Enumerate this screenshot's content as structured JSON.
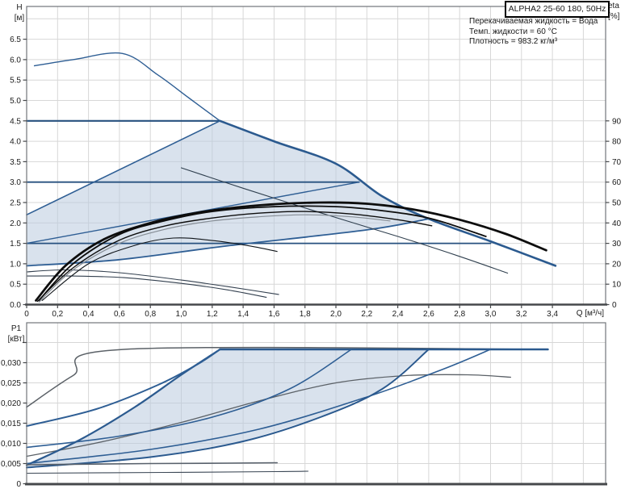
{
  "title_box": {
    "model": "ALPHA2 25-60 180, 50Hz"
  },
  "info_lines": [
    "Перекачиваемая жидкость = Вода",
    "Темп. жидкости = 60 °C",
    "Плотность = 983.2 кг/м³"
  ],
  "axes": {
    "h_label": "H",
    "h_unit": "[м]",
    "eta_label": "eta",
    "eta_unit": "[%]",
    "q_label": "Q [м³/ч]",
    "p1_label": "P1",
    "p1_unit": "[кВт]"
  },
  "colors": {
    "curve_blue": "#2e5e94",
    "curve_dark_blue": "#27517f",
    "curve_black": "#0d0d0d",
    "curve_grey": "#5b6167",
    "band_fill": "#b9cbdf",
    "grid": "#d7d7d7",
    "frame": "#71757a",
    "axis_heavy": "#46484b",
    "tick_text": "#1c1c1c"
  },
  "chart_data": [
    {
      "type": "line",
      "panel": "head-flow",
      "title": "ALPHA2 25-60 180, 50Hz",
      "xlabel": "Q [м³/ч]",
      "ylabel": "H [м]",
      "y2label": "eta [%]",
      "xlim": [
        0,
        3.74
      ],
      "ylim": [
        0,
        7.3
      ],
      "y2lim_labeled": [
        0,
        90
      ],
      "grid": true,
      "x_ticks": [
        [
          0,
          "0"
        ],
        [
          0.2,
          "0,2"
        ],
        [
          0.4,
          "0,4"
        ],
        [
          0.6,
          "0,6"
        ],
        [
          0.8,
          "0,8"
        ],
        [
          1,
          "1,0"
        ],
        [
          1.2,
          "1,2"
        ],
        [
          1.4,
          "1,4"
        ],
        [
          1.6,
          "1,6"
        ],
        [
          1.8,
          "1,8"
        ],
        [
          2,
          "2,0"
        ],
        [
          2.2,
          "2,2"
        ],
        [
          2.4,
          "2,4"
        ],
        [
          2.6,
          "2,6"
        ],
        [
          2.8,
          "2,8"
        ],
        [
          3,
          "3,0"
        ],
        [
          3.2,
          "3,2"
        ],
        [
          3.4,
          "3,4"
        ]
      ],
      "y_ticks": [
        [
          0,
          "0.0"
        ],
        [
          0.5,
          "0.5"
        ],
        [
          1,
          "1.0"
        ],
        [
          1.5,
          "1.5"
        ],
        [
          2,
          "2.0"
        ],
        [
          2.5,
          "2.5"
        ],
        [
          3,
          "3.0"
        ],
        [
          3.5,
          "3.5"
        ],
        [
          4,
          "4.0"
        ],
        [
          4.5,
          "4.5"
        ],
        [
          5,
          "5.0"
        ],
        [
          5.5,
          "5.5"
        ],
        [
          6,
          "6.0"
        ],
        [
          6.5,
          "6.5"
        ]
      ],
      "y2_ticks": [
        [
          0,
          "0"
        ],
        [
          10,
          "10"
        ],
        [
          20,
          "20"
        ],
        [
          30,
          "30"
        ],
        [
          40,
          "40"
        ],
        [
          50,
          "50"
        ],
        [
          60,
          "60"
        ],
        [
          70,
          "70"
        ],
        [
          80,
          "80"
        ],
        [
          90,
          "90"
        ]
      ],
      "band": {
        "name": "control-range",
        "upper": [
          [
            0,
            2.2
          ],
          [
            1.25,
            4.5
          ],
          [
            1.6,
            4.0
          ],
          [
            2.0,
            3.45
          ],
          [
            2.3,
            2.65
          ],
          [
            2.6,
            2.1
          ]
        ],
        "lower": [
          [
            0,
            0.95
          ],
          [
            0.6,
            1.1
          ],
          [
            1.3,
            1.44
          ],
          [
            2.2,
            1.83
          ],
          [
            2.6,
            2.1
          ]
        ]
      },
      "series": [
        {
          "name": "max-curve-upper",
          "unit": "H",
          "color": "#2e5e94",
          "width": 1.4,
          "pts": [
            [
              0.05,
              5.85
            ],
            [
              0.3,
              6.0
            ],
            [
              0.62,
              6.15
            ],
            [
              0.85,
              5.62
            ],
            [
              1.05,
              5.06
            ],
            [
              1.25,
              4.5
            ]
          ]
        },
        {
          "name": "max-curve-lower",
          "unit": "H",
          "color": "#2b5a8f",
          "width": 2.6,
          "pts": [
            [
              1.25,
              4.5
            ],
            [
              1.6,
              4.0
            ],
            [
              2.0,
              3.45
            ],
            [
              2.3,
              2.65
            ],
            [
              2.6,
              2.1
            ],
            [
              3.0,
              1.55
            ],
            [
              3.42,
              0.95
            ]
          ]
        },
        {
          "name": "const-pressure-4.5",
          "unit": "H",
          "color": "#27517f",
          "width": 2.2,
          "pts": [
            [
              0,
              4.5
            ],
            [
              1.25,
              4.5
            ]
          ]
        },
        {
          "name": "const-pressure-3.0",
          "unit": "H",
          "color": "#27517f",
          "width": 1.8,
          "pts": [
            [
              0,
              3.0
            ],
            [
              2.15,
              3.0
            ]
          ]
        },
        {
          "name": "const-pressure-1.5",
          "unit": "H",
          "color": "#27517f",
          "width": 1.8,
          "pts": [
            [
              0,
              1.5
            ],
            [
              3.0,
              1.5
            ]
          ]
        },
        {
          "name": "prop-pressure-4.5",
          "unit": "H",
          "color": "#2e5e94",
          "width": 1.6,
          "pts": [
            [
              0,
              2.2
            ],
            [
              1.25,
              4.5
            ]
          ]
        },
        {
          "name": "prop-pressure-3.0",
          "unit": "H",
          "color": "#2e5e94",
          "width": 1.4,
          "pts": [
            [
              0,
              1.5
            ],
            [
              2.15,
              3.0
            ]
          ]
        },
        {
          "name": "prop-pressure-1.5",
          "unit": "H",
          "color": "#2e5e94",
          "width": 1.8,
          "pts": [
            [
              0,
              0.95
            ],
            [
              0.6,
              1.1
            ],
            [
              1.3,
              1.44
            ],
            [
              2.2,
              1.83
            ],
            [
              2.6,
              2.1
            ]
          ]
        },
        {
          "name": "speed-curve-descending",
          "unit": "H",
          "color": "#30404f",
          "width": 1.1,
          "pts": [
            [
              1.0,
              3.35
            ],
            [
              1.4,
              2.85
            ],
            [
              1.9,
              2.25
            ],
            [
              2.4,
              1.67
            ],
            [
              2.8,
              1.18
            ],
            [
              3.11,
              0.77
            ]
          ]
        },
        {
          "name": "min-speed-curve-a",
          "unit": "H",
          "color": "#323f4e",
          "width": 1.1,
          "pts": [
            [
              0,
              0.8
            ],
            [
              0.25,
              0.85
            ],
            [
              0.6,
              0.78
            ],
            [
              1.0,
              0.6
            ],
            [
              1.3,
              0.44
            ],
            [
              1.63,
              0.25
            ]
          ]
        },
        {
          "name": "min-speed-curve-b",
          "unit": "H",
          "color": "#323f4e",
          "width": 1.1,
          "pts": [
            [
              0,
              0.7
            ],
            [
              0.3,
              0.7
            ],
            [
              0.63,
              0.66
            ],
            [
              1.0,
              0.52
            ],
            [
              1.3,
              0.36
            ],
            [
              1.55,
              0.18
            ]
          ]
        },
        {
          "name": "efficiency-main",
          "unit": "eta",
          "color": "#0d0d0d",
          "width": 2.8,
          "pts": [
            [
              0.06,
              2
            ],
            [
              0.25,
              19
            ],
            [
              0.5,
              32
            ],
            [
              0.8,
              40
            ],
            [
              1.1,
              45
            ],
            [
              1.5,
              48.6
            ],
            [
              1.9,
              50
            ],
            [
              2.2,
              49.4
            ],
            [
              2.5,
              46.6
            ],
            [
              2.8,
              41.6
            ],
            [
              3.1,
              34.6
            ],
            [
              3.36,
              26.6
            ]
          ]
        },
        {
          "name": "efficiency-2",
          "unit": "eta",
          "color": "#0d0d0d",
          "width": 1.8,
          "pts": [
            [
              0.08,
              2
            ],
            [
              0.3,
              20
            ],
            [
              0.6,
              34.4
            ],
            [
              0.9,
              41.2
            ],
            [
              1.2,
              45.6
            ],
            [
              1.6,
              48
            ],
            [
              2.0,
              48
            ],
            [
              2.3,
              46
            ],
            [
              2.62,
              42
            ],
            [
              2.97,
              33.4
            ]
          ]
        },
        {
          "name": "efficiency-3",
          "unit": "eta",
          "color": "#0d0d0d",
          "width": 1.4,
          "pts": [
            [
              0.07,
              1.6
            ],
            [
              0.3,
              18
            ],
            [
              0.6,
              31.6
            ],
            [
              0.9,
              38.6
            ],
            [
              1.2,
              42.4
            ],
            [
              1.5,
              44.8
            ],
            [
              1.8,
              45.6
            ],
            [
              2.1,
              44.4
            ],
            [
              2.4,
              41.6
            ],
            [
              2.62,
              38.6
            ]
          ]
        },
        {
          "name": "efficiency-grey",
          "unit": "eta",
          "color": "#868d95",
          "width": 1.2,
          "pts": [
            [
              0.08,
              1.2
            ],
            [
              0.3,
              17
            ],
            [
              0.6,
              30
            ],
            [
              0.9,
              37
            ],
            [
              1.2,
              41
            ],
            [
              1.5,
              43
            ],
            [
              1.8,
              44
            ],
            [
              2.1,
              43
            ],
            [
              2.35,
              41
            ]
          ]
        },
        {
          "name": "efficiency-min-speed",
          "unit": "eta",
          "color": "#10151a",
          "width": 1.1,
          "pts": [
            [
              0.1,
              2
            ],
            [
              0.4,
              20
            ],
            [
              0.7,
              29
            ],
            [
              0.95,
              32.6
            ],
            [
              1.2,
              31.4
            ],
            [
              1.45,
              28.6
            ],
            [
              1.62,
              26
            ]
          ]
        }
      ]
    },
    {
      "type": "line",
      "panel": "power-flow",
      "ylabel": "P1 [кВт]",
      "xlim": [
        0,
        3.74
      ],
      "ylim": [
        0,
        0.0395
      ],
      "grid": true,
      "y_ticks": [
        [
          0,
          "0"
        ],
        [
          0.005,
          "0,005"
        ],
        [
          0.01,
          "0,010"
        ],
        [
          0.015,
          "0,015"
        ],
        [
          0.02,
          "0,020"
        ],
        [
          0.025,
          "0,025"
        ],
        [
          0.03,
          "0,030"
        ],
        [
          0.035,
          ""
        ]
      ],
      "band": {
        "name": "power-control-range",
        "upper": [
          [
            0,
            0.0046
          ],
          [
            0.35,
            0.011
          ],
          [
            0.7,
            0.019
          ],
          [
            1.0,
            0.027
          ],
          [
            1.25,
            0.0333
          ],
          [
            2.6,
            0.0333
          ]
        ],
        "lower": [
          [
            0,
            0.004
          ],
          [
            0.8,
            0.0066
          ],
          [
            1.4,
            0.0105
          ],
          [
            1.9,
            0.0165
          ],
          [
            2.3,
            0.0235
          ],
          [
            2.6,
            0.0333
          ]
        ]
      },
      "series": [
        {
          "name": "p1-max-limit",
          "unit": "P1",
          "color": "#5b6167",
          "width": 1.5,
          "pts": [
            [
              0,
              0.019
            ],
            [
              0.3,
              0.0268
            ],
            [
              0.63,
              0.0333
            ],
            [
              3.37,
              0.0333
            ]
          ]
        },
        {
          "name": "p1-max-speed",
          "unit": "P1",
          "color": "#5b6167",
          "width": 1.3,
          "pts": [
            [
              0,
              0.0068
            ],
            [
              0.5,
              0.0105
            ],
            [
              1.0,
              0.0152
            ],
            [
              1.5,
              0.0205
            ],
            [
              2.0,
              0.025
            ],
            [
              2.45,
              0.0268
            ],
            [
              2.85,
              0.027
            ],
            [
              3.13,
              0.0264
            ]
          ]
        },
        {
          "name": "p1-flat-top",
          "unit": "P1",
          "color": "#2b5a8f",
          "width": 2.6,
          "pts": [
            [
              1.25,
              0.0333
            ],
            [
              3.37,
              0.0333
            ]
          ]
        },
        {
          "name": "p1-range-upper",
          "unit": "P1",
          "color": "#2b5a8f",
          "width": 2.2,
          "pts": [
            [
              0,
              0.0046
            ],
            [
              0.35,
              0.011
            ],
            [
              0.7,
              0.019
            ],
            [
              1.0,
              0.027
            ],
            [
              1.25,
              0.0333
            ]
          ]
        },
        {
          "name": "p1-const-4.5",
          "unit": "P1",
          "color": "#2e5e94",
          "width": 2,
          "pts": [
            [
              0,
              0.0143
            ],
            [
              0.45,
              0.0185
            ],
            [
              0.85,
              0.0245
            ],
            [
              1.1,
              0.0295
            ],
            [
              1.25,
              0.0333
            ]
          ]
        },
        {
          "name": "p1-const-3.0",
          "unit": "P1",
          "color": "#2e5e94",
          "width": 1.6,
          "pts": [
            [
              0,
              0.009
            ],
            [
              0.6,
              0.0118
            ],
            [
              1.2,
              0.0165
            ],
            [
              1.7,
              0.0235
            ],
            [
              2.1,
              0.0333
            ]
          ]
        },
        {
          "name": "p1-const-1.5",
          "unit": "P1",
          "color": "#2e5e94",
          "width": 1.6,
          "pts": [
            [
              0,
              0.005
            ],
            [
              0.8,
              0.0085
            ],
            [
              1.5,
              0.0135
            ],
            [
              2.2,
              0.0215
            ],
            [
              2.7,
              0.0285
            ],
            [
              3.0,
              0.0333
            ]
          ]
        },
        {
          "name": "p1-range-lower",
          "unit": "P1",
          "color": "#2b5a8f",
          "width": 2,
          "pts": [
            [
              0,
              0.004
            ],
            [
              0.8,
              0.0066
            ],
            [
              1.4,
              0.0105
            ],
            [
              1.9,
              0.0165
            ],
            [
              2.3,
              0.0235
            ],
            [
              2.6,
              0.0333
            ]
          ]
        },
        {
          "name": "p1-min-speed",
          "unit": "P1",
          "color": "#57606b",
          "width": 1.6,
          "pts": [
            [
              0,
              0.0047
            ],
            [
              0.8,
              0.005
            ],
            [
              1.3,
              0.0051
            ],
            [
              1.62,
              0.0052
            ]
          ]
        },
        {
          "name": "p1-lowest",
          "unit": "P1",
          "color": "#3c4856",
          "width": 1.1,
          "pts": [
            [
              0,
              0.0026
            ],
            [
              0.9,
              0.0028
            ],
            [
              1.6,
              0.003
            ],
            [
              1.82,
              0.0031
            ]
          ]
        }
      ]
    }
  ]
}
